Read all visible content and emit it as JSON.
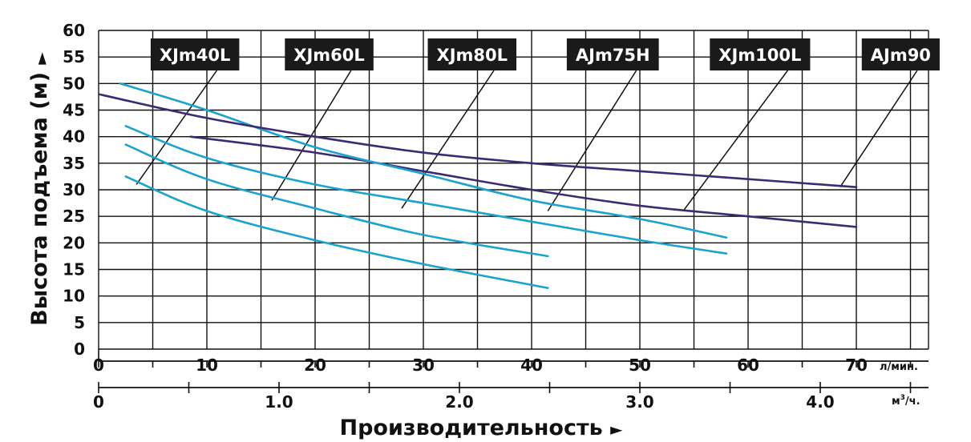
{
  "chart_data": {
    "type": "line",
    "ylabel": "Высота подъема (м)",
    "ylabel_arrow": "►",
    "xlabel": "Производительность",
    "xlabel_arrow": "►",
    "ylim": [
      0,
      60
    ],
    "yticks": [
      "0",
      "5",
      "10",
      "15",
      "20",
      "25",
      "30",
      "35",
      "40",
      "45",
      "50",
      "55",
      "60"
    ],
    "xlim": [
      0,
      75
    ],
    "grid": true,
    "x_axis_primary": {
      "unit": "л/мин.",
      "ticks": [
        {
          "value": 0,
          "label": "0"
        },
        {
          "value": 10,
          "label": "10"
        },
        {
          "value": 20,
          "label": "20"
        },
        {
          "value": 30,
          "label": "30"
        },
        {
          "value": 40,
          "label": "40"
        },
        {
          "value": 50,
          "label": "50"
        },
        {
          "value": 60,
          "label": "60"
        },
        {
          "value": 70,
          "label": "70"
        }
      ]
    },
    "x_axis_secondary": {
      "unit": "м³/ч.",
      "unit_base": "м",
      "unit_sup": "3",
      "unit_tail": "/ч.",
      "ticks": [
        {
          "value": 0,
          "label": "0"
        },
        {
          "value": 1.0,
          "label": "1.0"
        },
        {
          "value": 2.0,
          "label": "2.0"
        },
        {
          "value": 3.0,
          "label": "3.0"
        },
        {
          "value": 4.0,
          "label": "4.0"
        }
      ]
    },
    "colors": {
      "xjm": "#1aa3cc",
      "ajm": "#3d2a73",
      "label_bg": "#1a1a1a",
      "grid": "#111111"
    },
    "series": [
      {
        "name": "XJm40L",
        "color_key": "xjm",
        "x": [
          2.5,
          10,
          20,
          30,
          41.5
        ],
        "y": [
          32.5,
          26,
          20.5,
          16,
          11.5
        ],
        "pointer": [
          3.5,
          31
        ]
      },
      {
        "name": "XJm60L",
        "color_key": "xjm",
        "x": [
          2.5,
          10,
          20,
          30,
          41.5
        ],
        "y": [
          38.5,
          32,
          26.5,
          21.5,
          17.5
        ],
        "pointer": [
          16,
          28
        ]
      },
      {
        "name": "XJm80L",
        "color_key": "xjm",
        "x": [
          2.5,
          10,
          20,
          30,
          40,
          50,
          58
        ],
        "y": [
          42,
          36,
          31,
          27.5,
          24,
          20.5,
          18
        ],
        "pointer": [
          28,
          26.5
        ]
      },
      {
        "name": "AJm75H",
        "color_key": "ajm",
        "x": [
          8.5,
          20,
          30,
          40,
          50,
          60,
          70
        ],
        "y": [
          40,
          37,
          33.5,
          30,
          27,
          25,
          23
        ],
        "pointer": [
          41.5,
          26
        ]
      },
      {
        "name": "XJm100L",
        "color_key": "xjm",
        "x": [
          2,
          10,
          20,
          30,
          40,
          50,
          58
        ],
        "y": [
          50,
          45,
          38,
          33,
          28,
          24.5,
          21
        ],
        "pointer": [
          54,
          26
        ]
      },
      {
        "name": "AJm90",
        "color_key": "ajm",
        "x": [
          0,
          10,
          20,
          30,
          40,
          50,
          60,
          70
        ],
        "y": [
          48,
          43.5,
          40,
          37,
          35,
          33.5,
          32,
          30.5
        ],
        "pointer": [
          68.5,
          30.5
        ]
      }
    ]
  }
}
